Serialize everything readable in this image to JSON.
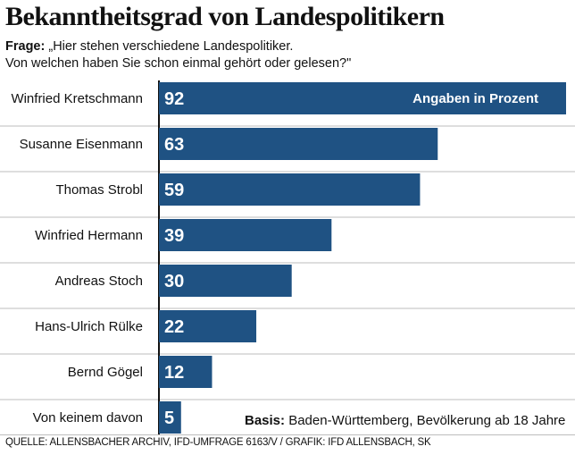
{
  "title": "Bekanntheitsgrad von Landespolitikern",
  "question": {
    "label": "Frage:",
    "line1": "„Hier stehen verschiedene Landespolitiker.",
    "line2": "Von welchen haben Sie schon einmal gehört oder gelesen?\""
  },
  "chart_data": {
    "type": "bar",
    "orientation": "horizontal",
    "categories": [
      "Winfried Kretschmann",
      "Susanne Eisenmann",
      "Thomas Strobl",
      "Winfried Hermann",
      "Andreas Stoch",
      "Hans-Ulrich Rülke",
      "Bernd Gögel",
      "Von keinem davon"
    ],
    "values": [
      92,
      63,
      59,
      39,
      30,
      22,
      12,
      5
    ],
    "value_labels": [
      "92",
      "63",
      "59",
      "39",
      "30",
      "22",
      "12",
      "5"
    ],
    "unit_note": "Angaben in Prozent",
    "xlim": [
      0,
      92
    ],
    "grid": false,
    "bar_color": "#1f5283",
    "separator_color": "#bdbdbd"
  },
  "basis": {
    "label": "Basis:",
    "text": " Baden-Württemberg, Bevölkerung ab 18 Jahre"
  },
  "source": "QUELLE: ALLENSBACHER ARCHIV, IFD-UMFRAGE 6163/V / GRAFIK: IFD ALLENSBACH, SK"
}
